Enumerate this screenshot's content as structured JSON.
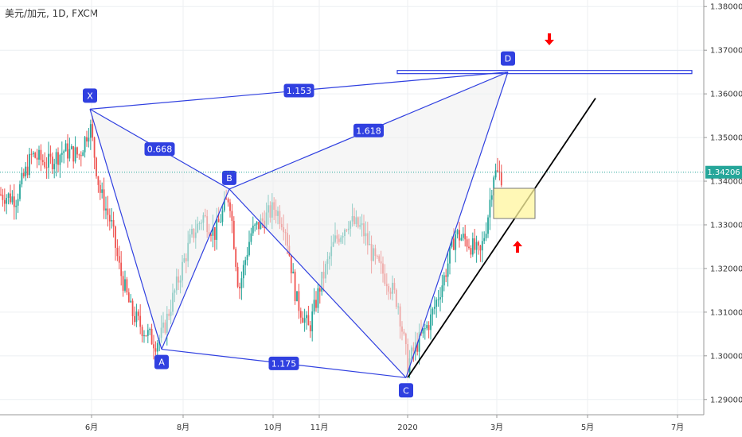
{
  "symbol_text": "美元/加元, 1D, FXCM",
  "chart_data": {
    "type": "candlestick",
    "title": "美元/加元, 1D, FXCM",
    "ylim": [
      1.2865,
      1.3815
    ],
    "y_ticks": [
      "1.38000",
      "1.37000",
      "1.36000",
      "1.35000",
      "1.34000",
      "1.33000",
      "1.32000",
      "1.31000",
      "1.30000",
      "1.29000"
    ],
    "x_ticks": [
      "6月",
      "8月",
      "10月",
      "11月",
      "2020",
      "3月",
      "5月",
      "7月"
    ],
    "current_price": "1.34206",
    "pattern_points": [
      {
        "label": "X",
        "price": 1.3565
      },
      {
        "label": "A",
        "price": 1.3015
      },
      {
        "label": "B",
        "price": 1.3382
      },
      {
        "label": "C",
        "price": 1.295
      },
      {
        "label": "D",
        "price": 1.365
      }
    ],
    "ratios": [
      "0.668",
      "1.618",
      "1.153",
      "1.175"
    ],
    "key_level": 1.365,
    "colors": {
      "up": "#26a69a",
      "down": "#ef5350",
      "pattern": "#3040e0",
      "pattern_fill": "#eeeeee",
      "trendline": "#000000",
      "box": "#fff59d",
      "arrow": "#ff0000"
    }
  }
}
